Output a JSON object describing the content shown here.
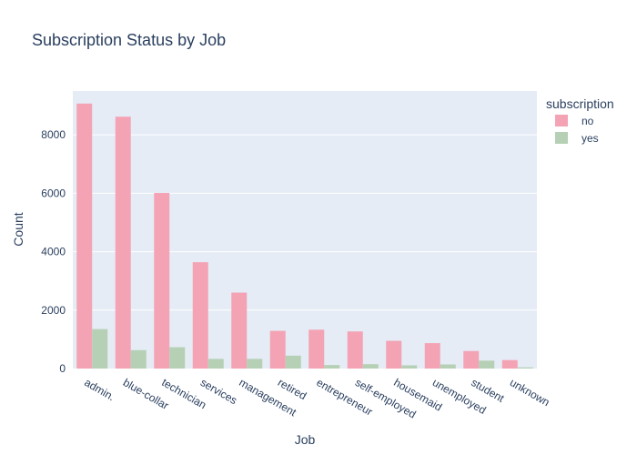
{
  "chart_data": {
    "type": "bar",
    "title": "Subscription Status by Job",
    "xlabel": "Job",
    "ylabel": "Count",
    "ylim": [
      0,
      9500
    ],
    "yticks": [
      0,
      2000,
      4000,
      6000,
      8000
    ],
    "ytick_labels": [
      "0",
      "2000",
      "4000",
      "6000",
      "8000"
    ],
    "legend_title": "subscription",
    "categories": [
      "admin.",
      "blue-collar",
      "technician",
      "services",
      "management",
      "retired",
      "entrepreneur",
      "self-employed",
      "housemaid",
      "unemployed",
      "student",
      "unknown"
    ],
    "series": [
      {
        "name": "no",
        "color": "#f4a3b4",
        "values": [
          9070,
          8620,
          6010,
          3640,
          2600,
          1290,
          1330,
          1270,
          950,
          870,
          600,
          290
        ]
      },
      {
        "name": "yes",
        "color": "#b5d0b4",
        "values": [
          1350,
          630,
          730,
          330,
          330,
          440,
          120,
          150,
          110,
          140,
          270,
          40
        ]
      }
    ]
  }
}
